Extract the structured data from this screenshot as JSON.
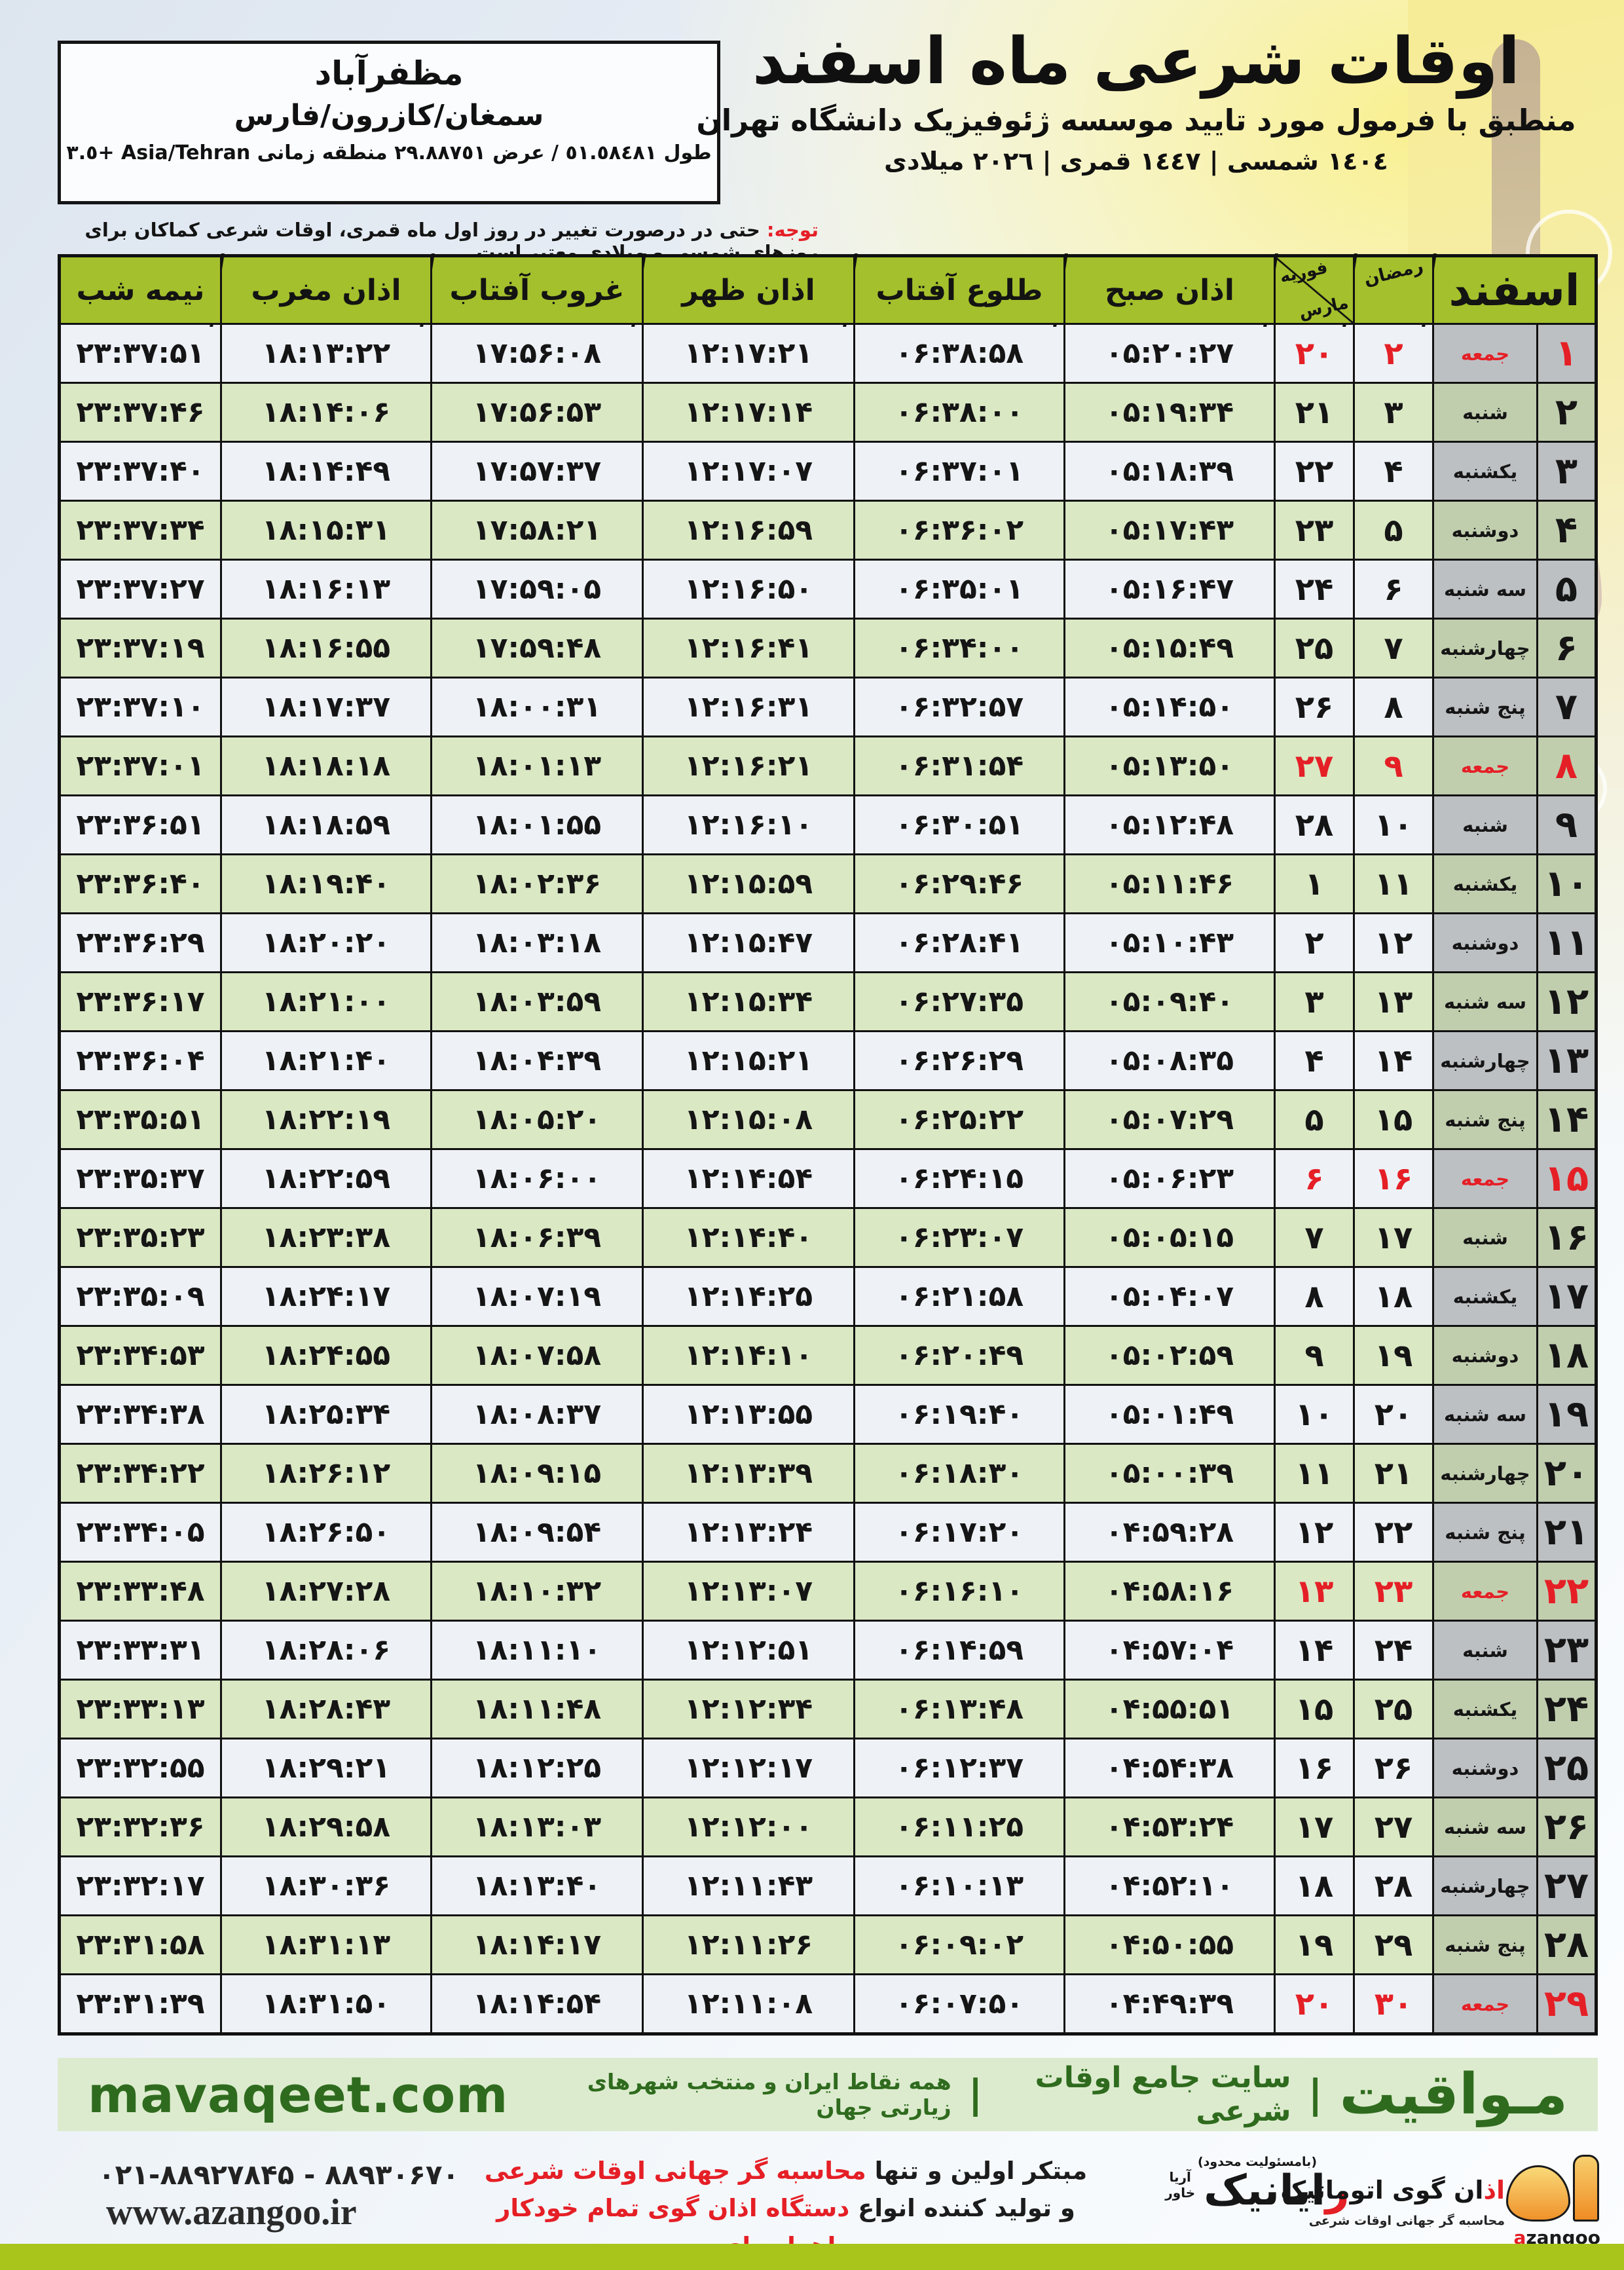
{
  "header": {
    "title": "اوقات شرعی ماه اسفند",
    "subtitle": "منطبق با فرمول مورد تایید موسسه ژئوفیزیک دانشگاه تهران",
    "years": "١٤٠٤ شمسی | ١٤٤٧ قمری | ٢٠٢٦ میلادی"
  },
  "location": {
    "city": "مظفرآباد",
    "region": "سمغان/کازرون/فارس",
    "coords": "طول ٥١.٥٨٤٨١ / عرض ٢٩.٨٨٧٥١ منطقه زمانی Asia/Tehran +٣.٥"
  },
  "notice": {
    "label": "توجه:",
    "text": " حتی در درصورت تغییر در روز اول ماه قمری، اوقات شرعی کماکان برای روزهای شمسی و میلادی معتبر است."
  },
  "table": {
    "headers": {
      "esfand": "اسفند",
      "ramadan": "رمضان",
      "feb": "فوریه",
      "mar": "مارس",
      "sobh": "اذان صبح",
      "tolu": "طلوع آفتاب",
      "zohr": "اذان ظهر",
      "ghorub": "غروب آفتاب",
      "maghreb": "اذان مغرب",
      "nimeshab": "نیمه شب"
    },
    "rows": [
      {
        "esfand": "۱",
        "weekday": "جمعه",
        "ramadan": "۲",
        "gregorian": "۲۰",
        "sobh": "۰۵:۲۰:۲۷",
        "tolu": "۰۶:۳۸:۵۸",
        "zohr": "۱۲:۱۷:۲۱",
        "ghorub": "۱۷:۵۶:۰۸",
        "maghreb": "۱۸:۱۳:۲۲",
        "nimeshab": "۲۳:۳۷:۵۱",
        "holiday": true
      },
      {
        "esfand": "۲",
        "weekday": "شنبه",
        "ramadan": "۳",
        "gregorian": "۲۱",
        "sobh": "۰۵:۱۹:۳۴",
        "tolu": "۰۶:۳۸:۰۰",
        "zohr": "۱۲:۱۷:۱۴",
        "ghorub": "۱۷:۵۶:۵۳",
        "maghreb": "۱۸:۱۴:۰۶",
        "nimeshab": "۲۳:۳۷:۴۶",
        "holiday": false
      },
      {
        "esfand": "۳",
        "weekday": "یکشنبه",
        "ramadan": "۴",
        "gregorian": "۲۲",
        "sobh": "۰۵:۱۸:۳۹",
        "tolu": "۰۶:۳۷:۰۱",
        "zohr": "۱۲:۱۷:۰۷",
        "ghorub": "۱۷:۵۷:۳۷",
        "maghreb": "۱۸:۱۴:۴۹",
        "nimeshab": "۲۳:۳۷:۴۰",
        "holiday": false
      },
      {
        "esfand": "۴",
        "weekday": "دوشنبه",
        "ramadan": "۵",
        "gregorian": "۲۳",
        "sobh": "۰۵:۱۷:۴۳",
        "tolu": "۰۶:۳۶:۰۲",
        "zohr": "۱۲:۱۶:۵۹",
        "ghorub": "۱۷:۵۸:۲۱",
        "maghreb": "۱۸:۱۵:۳۱",
        "nimeshab": "۲۳:۳۷:۳۴",
        "holiday": false
      },
      {
        "esfand": "۵",
        "weekday": "سه شنبه",
        "ramadan": "۶",
        "gregorian": "۲۴",
        "sobh": "۰۵:۱۶:۴۷",
        "tolu": "۰۶:۳۵:۰۱",
        "zohr": "۱۲:۱۶:۵۰",
        "ghorub": "۱۷:۵۹:۰۵",
        "maghreb": "۱۸:۱۶:۱۳",
        "nimeshab": "۲۳:۳۷:۲۷",
        "holiday": false
      },
      {
        "esfand": "۶",
        "weekday": "چهارشنبه",
        "ramadan": "۷",
        "gregorian": "۲۵",
        "sobh": "۰۵:۱۵:۴۹",
        "tolu": "۰۶:۳۴:۰۰",
        "zohr": "۱۲:۱۶:۴۱",
        "ghorub": "۱۷:۵۹:۴۸",
        "maghreb": "۱۸:۱۶:۵۵",
        "nimeshab": "۲۳:۳۷:۱۹",
        "holiday": false
      },
      {
        "esfand": "۷",
        "weekday": "پنج شنبه",
        "ramadan": "۸",
        "gregorian": "۲۶",
        "sobh": "۰۵:۱۴:۵۰",
        "tolu": "۰۶:۳۲:۵۷",
        "zohr": "۱۲:۱۶:۳۱",
        "ghorub": "۱۸:۰۰:۳۱",
        "maghreb": "۱۸:۱۷:۳۷",
        "nimeshab": "۲۳:۳۷:۱۰",
        "holiday": false
      },
      {
        "esfand": "۸",
        "weekday": "جمعه",
        "ramadan": "۹",
        "gregorian": "۲۷",
        "sobh": "۰۵:۱۳:۵۰",
        "tolu": "۰۶:۳۱:۵۴",
        "zohr": "۱۲:۱۶:۲۱",
        "ghorub": "۱۸:۰۱:۱۳",
        "maghreb": "۱۸:۱۸:۱۸",
        "nimeshab": "۲۳:۳۷:۰۱",
        "holiday": true
      },
      {
        "esfand": "۹",
        "weekday": "شنبه",
        "ramadan": "۱۰",
        "gregorian": "۲۸",
        "sobh": "۰۵:۱۲:۴۸",
        "tolu": "۰۶:۳۰:۵۱",
        "zohr": "۱۲:۱۶:۱۰",
        "ghorub": "۱۸:۰۱:۵۵",
        "maghreb": "۱۸:۱۸:۵۹",
        "nimeshab": "۲۳:۳۶:۵۱",
        "holiday": false
      },
      {
        "esfand": "۱۰",
        "weekday": "یکشنبه",
        "ramadan": "۱۱",
        "gregorian": "۱",
        "sobh": "۰۵:۱۱:۴۶",
        "tolu": "۰۶:۲۹:۴۶",
        "zohr": "۱۲:۱۵:۵۹",
        "ghorub": "۱۸:۰۲:۳۶",
        "maghreb": "۱۸:۱۹:۴۰",
        "nimeshab": "۲۳:۳۶:۴۰",
        "holiday": false
      },
      {
        "esfand": "۱۱",
        "weekday": "دوشنبه",
        "ramadan": "۱۲",
        "gregorian": "۲",
        "sobh": "۰۵:۱۰:۴۳",
        "tolu": "۰۶:۲۸:۴۱",
        "zohr": "۱۲:۱۵:۴۷",
        "ghorub": "۱۸:۰۳:۱۸",
        "maghreb": "۱۸:۲۰:۲۰",
        "nimeshab": "۲۳:۳۶:۲۹",
        "holiday": false
      },
      {
        "esfand": "۱۲",
        "weekday": "سه شنبه",
        "ramadan": "۱۳",
        "gregorian": "۳",
        "sobh": "۰۵:۰۹:۴۰",
        "tolu": "۰۶:۲۷:۳۵",
        "zohr": "۱۲:۱۵:۳۴",
        "ghorub": "۱۸:۰۳:۵۹",
        "maghreb": "۱۸:۲۱:۰۰",
        "nimeshab": "۲۳:۳۶:۱۷",
        "holiday": false
      },
      {
        "esfand": "۱۳",
        "weekday": "چهارشنبه",
        "ramadan": "۱۴",
        "gregorian": "۴",
        "sobh": "۰۵:۰۸:۳۵",
        "tolu": "۰۶:۲۶:۲۹",
        "zohr": "۱۲:۱۵:۲۱",
        "ghorub": "۱۸:۰۴:۳۹",
        "maghreb": "۱۸:۲۱:۴۰",
        "nimeshab": "۲۳:۳۶:۰۴",
        "holiday": false
      },
      {
        "esfand": "۱۴",
        "weekday": "پنج شنبه",
        "ramadan": "۱۵",
        "gregorian": "۵",
        "sobh": "۰۵:۰۷:۲۹",
        "tolu": "۰۶:۲۵:۲۲",
        "zohr": "۱۲:۱۵:۰۸",
        "ghorub": "۱۸:۰۵:۲۰",
        "maghreb": "۱۸:۲۲:۱۹",
        "nimeshab": "۲۳:۳۵:۵۱",
        "holiday": false
      },
      {
        "esfand": "۱۵",
        "weekday": "جمعه",
        "ramadan": "۱۶",
        "gregorian": "۶",
        "sobh": "۰۵:۰۶:۲۳",
        "tolu": "۰۶:۲۴:۱۵",
        "zohr": "۱۲:۱۴:۵۴",
        "ghorub": "۱۸:۰۶:۰۰",
        "maghreb": "۱۸:۲۲:۵۹",
        "nimeshab": "۲۳:۳۵:۳۷",
        "holiday": true
      },
      {
        "esfand": "۱۶",
        "weekday": "شنبه",
        "ramadan": "۱۷",
        "gregorian": "۷",
        "sobh": "۰۵:۰۵:۱۵",
        "tolu": "۰۶:۲۳:۰۷",
        "zohr": "۱۲:۱۴:۴۰",
        "ghorub": "۱۸:۰۶:۳۹",
        "maghreb": "۱۸:۲۳:۳۸",
        "nimeshab": "۲۳:۳۵:۲۳",
        "holiday": false
      },
      {
        "esfand": "۱۷",
        "weekday": "یکشنبه",
        "ramadan": "۱۸",
        "gregorian": "۸",
        "sobh": "۰۵:۰۴:۰۷",
        "tolu": "۰۶:۲۱:۵۸",
        "zohr": "۱۲:۱۴:۲۵",
        "ghorub": "۱۸:۰۷:۱۹",
        "maghreb": "۱۸:۲۴:۱۷",
        "nimeshab": "۲۳:۳۵:۰۹",
        "holiday": false
      },
      {
        "esfand": "۱۸",
        "weekday": "دوشنبه",
        "ramadan": "۱۹",
        "gregorian": "۹",
        "sobh": "۰۵:۰۲:۵۹",
        "tolu": "۰۶:۲۰:۴۹",
        "zohr": "۱۲:۱۴:۱۰",
        "ghorub": "۱۸:۰۷:۵۸",
        "maghreb": "۱۸:۲۴:۵۵",
        "nimeshab": "۲۳:۳۴:۵۳",
        "holiday": false
      },
      {
        "esfand": "۱۹",
        "weekday": "سه شنبه",
        "ramadan": "۲۰",
        "gregorian": "۱۰",
        "sobh": "۰۵:۰۱:۴۹",
        "tolu": "۰۶:۱۹:۴۰",
        "zohr": "۱۲:۱۳:۵۵",
        "ghorub": "۱۸:۰۸:۳۷",
        "maghreb": "۱۸:۲۵:۳۴",
        "nimeshab": "۲۳:۳۴:۳۸",
        "holiday": false
      },
      {
        "esfand": "۲۰",
        "weekday": "چهارشنبه",
        "ramadan": "۲۱",
        "gregorian": "۱۱",
        "sobh": "۰۵:۰۰:۳۹",
        "tolu": "۰۶:۱۸:۳۰",
        "zohr": "۱۲:۱۳:۳۹",
        "ghorub": "۱۸:۰۹:۱۵",
        "maghreb": "۱۸:۲۶:۱۲",
        "nimeshab": "۲۳:۳۴:۲۲",
        "holiday": false
      },
      {
        "esfand": "۲۱",
        "weekday": "پنج شنبه",
        "ramadan": "۲۲",
        "gregorian": "۱۲",
        "sobh": "۰۴:۵۹:۲۸",
        "tolu": "۰۶:۱۷:۲۰",
        "zohr": "۱۲:۱۳:۲۴",
        "ghorub": "۱۸:۰۹:۵۴",
        "maghreb": "۱۸:۲۶:۵۰",
        "nimeshab": "۲۳:۳۴:۰۵",
        "holiday": false
      },
      {
        "esfand": "۲۲",
        "weekday": "جمعه",
        "ramadan": "۲۳",
        "gregorian": "۱۳",
        "sobh": "۰۴:۵۸:۱۶",
        "tolu": "۰۶:۱۶:۱۰",
        "zohr": "۱۲:۱۳:۰۷",
        "ghorub": "۱۸:۱۰:۳۲",
        "maghreb": "۱۸:۲۷:۲۸",
        "nimeshab": "۲۳:۳۳:۴۸",
        "holiday": true
      },
      {
        "esfand": "۲۳",
        "weekday": "شنبه",
        "ramadan": "۲۴",
        "gregorian": "۱۴",
        "sobh": "۰۴:۵۷:۰۴",
        "tolu": "۰۶:۱۴:۵۹",
        "zohr": "۱۲:۱۲:۵۱",
        "ghorub": "۱۸:۱۱:۱۰",
        "maghreb": "۱۸:۲۸:۰۶",
        "nimeshab": "۲۳:۳۳:۳۱",
        "holiday": false
      },
      {
        "esfand": "۲۴",
        "weekday": "یکشنبه",
        "ramadan": "۲۵",
        "gregorian": "۱۵",
        "sobh": "۰۴:۵۵:۵۱",
        "tolu": "۰۶:۱۳:۴۸",
        "zohr": "۱۲:۱۲:۳۴",
        "ghorub": "۱۸:۱۱:۴۸",
        "maghreb": "۱۸:۲۸:۴۳",
        "nimeshab": "۲۳:۳۳:۱۳",
        "holiday": false
      },
      {
        "esfand": "۲۵",
        "weekday": "دوشنبه",
        "ramadan": "۲۶",
        "gregorian": "۱۶",
        "sobh": "۰۴:۵۴:۳۸",
        "tolu": "۰۶:۱۲:۳۷",
        "zohr": "۱۲:۱۲:۱۷",
        "ghorub": "۱۸:۱۲:۲۵",
        "maghreb": "۱۸:۲۹:۲۱",
        "nimeshab": "۲۳:۳۲:۵۵",
        "holiday": false
      },
      {
        "esfand": "۲۶",
        "weekday": "سه شنبه",
        "ramadan": "۲۷",
        "gregorian": "۱۷",
        "sobh": "۰۴:۵۳:۲۴",
        "tolu": "۰۶:۱۱:۲۵",
        "zohr": "۱۲:۱۲:۰۰",
        "ghorub": "۱۸:۱۳:۰۳",
        "maghreb": "۱۸:۲۹:۵۸",
        "nimeshab": "۲۳:۳۲:۳۶",
        "holiday": false
      },
      {
        "esfand": "۲۷",
        "weekday": "چهارشنبه",
        "ramadan": "۲۸",
        "gregorian": "۱۸",
        "sobh": "۰۴:۵۲:۱۰",
        "tolu": "۰۶:۱۰:۱۳",
        "zohr": "۱۲:۱۱:۴۳",
        "ghorub": "۱۸:۱۳:۴۰",
        "maghreb": "۱۸:۳۰:۳۶",
        "nimeshab": "۲۳:۳۲:۱۷",
        "holiday": false
      },
      {
        "esfand": "۲۸",
        "weekday": "پنج شنبه",
        "ramadan": "۲۹",
        "gregorian": "۱۹",
        "sobh": "۰۴:۵۰:۵۵",
        "tolu": "۰۶:۰۹:۰۲",
        "zohr": "۱۲:۱۱:۲۶",
        "ghorub": "۱۸:۱۴:۱۷",
        "maghreb": "۱۸:۳۱:۱۳",
        "nimeshab": "۲۳:۳۱:۵۸",
        "holiday": false
      },
      {
        "esfand": "۲۹",
        "weekday": "جمعه",
        "ramadan": "۳۰",
        "gregorian": "۲۰",
        "sobh": "۰۴:۴۹:۳۹",
        "tolu": "۰۶:۰۷:۵۰",
        "zohr": "۱۲:۱۱:۰۸",
        "ghorub": "۱۸:۱۴:۵۴",
        "maghreb": "۱۸:۳۱:۵۰",
        "nimeshab": "۲۳:۳۱:۳۹",
        "holiday": true
      }
    ]
  },
  "footer": {
    "brand": "مـواقیت",
    "separator": "|",
    "site_desc": "سایت جامع اوقات شرعی",
    "site_desc2": "همه نقاط ایران و منتخب شهرهای زیارتی جهان",
    "domain": "mavaqeet.com",
    "phones": "۰۲۱-۸۸۹۲۷۸۴۵ - ۸۸۹۳۰۶۷۰",
    "website": "www.azangoo.ir",
    "promo1_black": "مبتکر اولین و تنها ",
    "promo1_red": "محاسبه گر جهانی اوقات شرعی",
    "promo2_black": "و تولید کننده انواع ",
    "promo2_red": "دستگاه اذان گوی تمام خودکار ماهواره ای",
    "rayanik_small": "(بامسئولیت محدود)",
    "rayanik_first": "ر",
    "rayanik_rest": "ایانیک",
    "rayanik_side1": "آریا",
    "rayanik_side2": "خاور",
    "azangoo_fa_red": "اذ",
    "azangoo_fa_rest": "ان گوی اتوماتیک",
    "azangoo_slogan": "محاسبه گر جهانی اوقات شرعی",
    "azangoo_en_a": "a",
    "azangoo_en_rest": "zangoo"
  },
  "colors": {
    "header_green": "#a4c02c",
    "row_green": "#dae8c4",
    "row_white": "#eef2f6",
    "holiday_red": "#e51f26",
    "brand_dark_green": "#2f6b1e",
    "band_green": "#dcebce",
    "bottom_bar": "#a9c51c"
  }
}
